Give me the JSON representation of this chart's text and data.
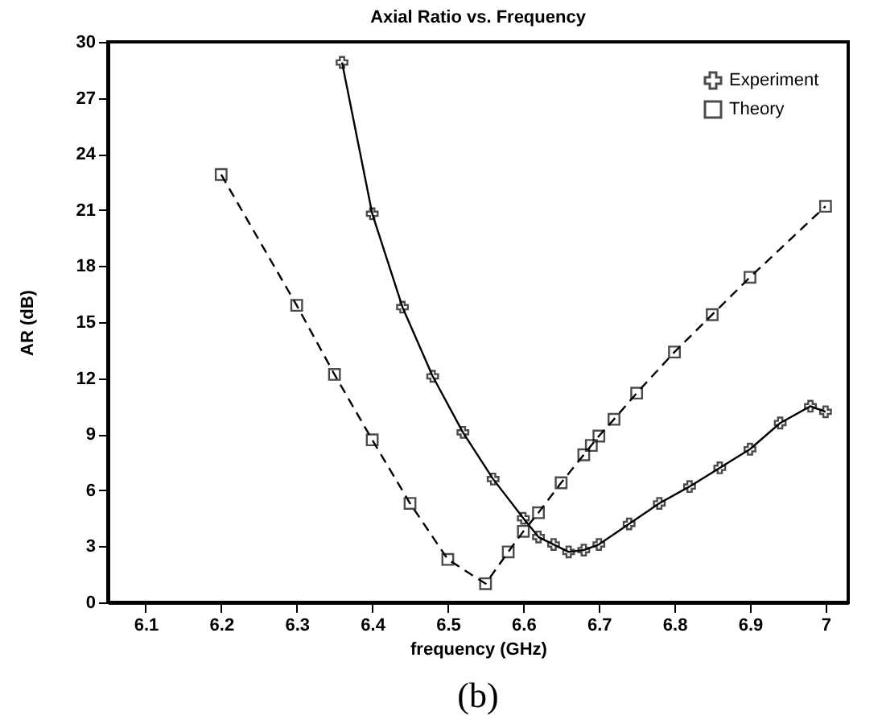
{
  "chart_data": {
    "type": "line",
    "title": "Axial Ratio vs. Frequency",
    "xlabel": "frequency (GHz)",
    "ylabel": "AR (dB)",
    "xlim": [
      6.05,
      7.03
    ],
    "xticks": [
      6.1,
      6.2,
      6.3,
      6.4,
      6.5,
      6.6,
      6.7,
      6.8,
      6.9,
      {
        "value": 7,
        "label": "7"
      }
    ],
    "ylim": [
      0,
      30
    ],
    "yticks": [
      0,
      3,
      6,
      9,
      12,
      15,
      18,
      21,
      24,
      27,
      30
    ],
    "grid": false,
    "legend": "top right",
    "annotations": [
      "(b)"
    ],
    "series": [
      {
        "name": "Experiment",
        "color": "#000000",
        "marker": "cross",
        "line_style": "solid",
        "x": [
          6.36,
          6.4,
          6.44,
          6.48,
          6.52,
          6.56,
          6.6,
          6.62,
          6.64,
          6.66,
          6.68,
          6.7,
          6.74,
          6.78,
          6.82,
          6.86,
          6.9,
          6.94,
          6.98,
          7.0
        ],
        "values": [
          28.9,
          20.8,
          15.8,
          12.1,
          9.1,
          6.6,
          4.5,
          3.5,
          3.1,
          2.7,
          2.8,
          3.1,
          4.2,
          5.3,
          6.2,
          7.2,
          8.2,
          9.6,
          10.5,
          10.2
        ]
      },
      {
        "name": "Theory",
        "color": "#000000",
        "marker": "square",
        "line_style": "dashed",
        "x": [
          6.2,
          6.3,
          6.35,
          6.4,
          6.45,
          6.5,
          6.55,
          6.58,
          6.6,
          6.62,
          6.65,
          6.68,
          6.69,
          6.7,
          6.72,
          6.75,
          6.8,
          6.85,
          6.9,
          7.0
        ],
        "values": [
          22.9,
          15.9,
          12.2,
          8.7,
          5.3,
          2.3,
          1.0,
          2.7,
          3.8,
          4.8,
          6.4,
          7.9,
          8.4,
          8.9,
          9.8,
          11.2,
          13.4,
          15.4,
          17.4,
          21.2
        ]
      }
    ]
  }
}
